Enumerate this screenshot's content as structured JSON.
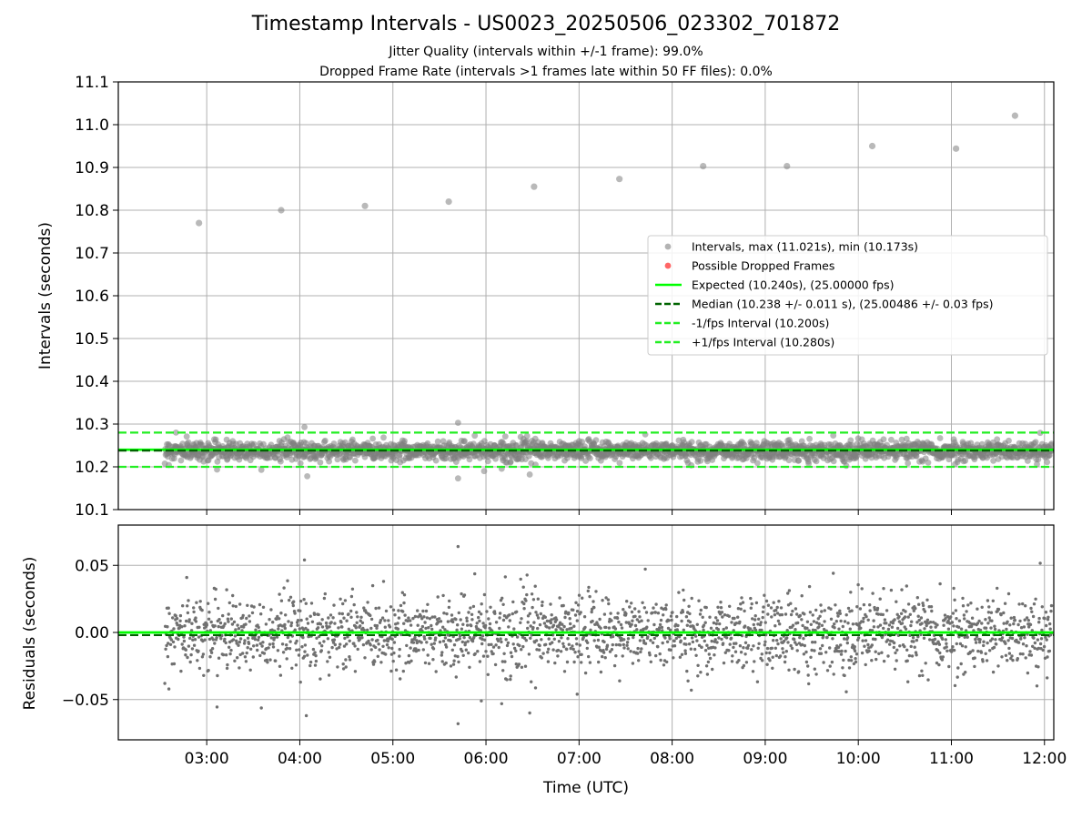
{
  "figure": {
    "title": "Timestamp Intervals - US0023_20250506_023302_701872",
    "subtitle_1": "Jitter Quality (intervals within +/-1 frame): 99.0%",
    "subtitle_2": "Dropped Frame Rate (intervals >1 frames late within 50 FF files): 0.0%"
  },
  "colors": {
    "points": "#808080",
    "dropped": "#ff4040",
    "expected": "#00ff00",
    "median": "#006400",
    "bounds": "#22ee22",
    "grid": "#b0b0b0"
  },
  "chart_data": [
    {
      "type": "scatter",
      "panel": "intervals",
      "ylabel": "Intervals (seconds)",
      "ylim": [
        10.1,
        11.1
      ],
      "yticks": [
        "10.1",
        "10.2",
        "10.3",
        "10.4",
        "10.5",
        "10.6",
        "10.7",
        "10.8",
        "10.9",
        "11.0",
        "11.1"
      ],
      "xlim_hours": [
        2.05,
        12.1
      ],
      "grid": true,
      "legend_position": "center-right",
      "legend": [
        {
          "label": "Intervals, max (11.021s), min (10.173s)",
          "kind": "dot",
          "color": "#a0a0a0"
        },
        {
          "label": "Possible Dropped Frames",
          "kind": "dot",
          "color": "#ff4040"
        },
        {
          "label": "Expected (10.240s), (25.00000 fps)",
          "kind": "line",
          "color": "#00ff00"
        },
        {
          "label": "Median (10.238 +/- 0.011 s), (25.00486 +/- 0.03 fps)",
          "kind": "dash",
          "color": "#006400"
        },
        {
          "label": "-1/fps Interval (10.200s)",
          "kind": "dash",
          "color": "#22ee22"
        },
        {
          "label": "+1/fps Interval (10.280s)",
          "kind": "dash",
          "color": "#22ee22"
        }
      ],
      "reference_lines": {
        "expected": 10.24,
        "median": 10.238,
        "minus_fps": 10.2,
        "plus_fps": 10.28
      },
      "outliers": [
        {
          "x": "02:55",
          "y": 10.77
        },
        {
          "x": "03:48",
          "y": 10.8
        },
        {
          "x": "04:42",
          "y": 10.81
        },
        {
          "x": "05:36",
          "y": 10.82
        },
        {
          "x": "06:31",
          "y": 10.855
        },
        {
          "x": "07:26",
          "y": 10.873
        },
        {
          "x": "08:20",
          "y": 10.903
        },
        {
          "x": "09:14",
          "y": 10.903
        },
        {
          "x": "10:09",
          "y": 10.95
        },
        {
          "x": "11:03",
          "y": 10.944
        },
        {
          "x": "11:41",
          "y": 11.021
        }
      ],
      "band": {
        "x_start": "02:33",
        "x_end": "12:05",
        "center": 10.238,
        "spread": 0.011,
        "min": 10.173,
        "max": 10.3
      }
    },
    {
      "type": "scatter",
      "panel": "residuals",
      "ylabel": "Residuals (seconds)",
      "xlabel": "Time (UTC)",
      "ylim": [
        -0.08,
        0.08
      ],
      "yticks": [
        "−0.05",
        "0.00",
        "0.05"
      ],
      "xticks": [
        "03:00",
        "04:00",
        "05:00",
        "06:00",
        "07:00",
        "08:00",
        "09:00",
        "10:00",
        "11:00",
        "12:00"
      ],
      "grid": true,
      "reference_lines": {
        "expected": 0.0,
        "median": -0.002
      },
      "residual_range": [
        -0.068,
        0.064
      ]
    }
  ]
}
